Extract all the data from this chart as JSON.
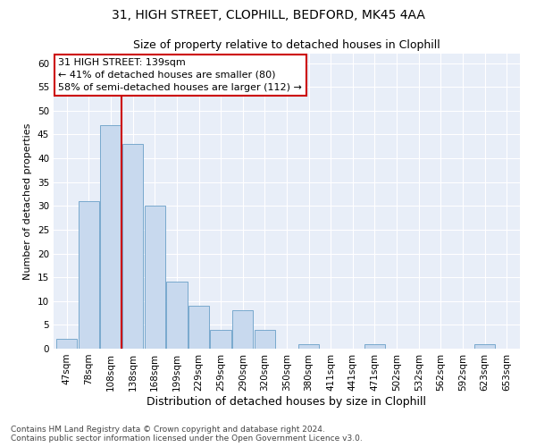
{
  "title1": "31, HIGH STREET, CLOPHILL, BEDFORD, MK45 4AA",
  "title2": "Size of property relative to detached houses in Clophill",
  "xlabel": "Distribution of detached houses by size in Clophill",
  "ylabel": "Number of detached properties",
  "categories": [
    "47sqm",
    "78sqm",
    "108sqm",
    "138sqm",
    "168sqm",
    "199sqm",
    "229sqm",
    "259sqm",
    "290sqm",
    "320sqm",
    "350sqm",
    "380sqm",
    "411sqm",
    "441sqm",
    "471sqm",
    "502sqm",
    "532sqm",
    "562sqm",
    "592sqm",
    "623sqm",
    "653sqm"
  ],
  "values": [
    2,
    31,
    47,
    43,
    30,
    14,
    9,
    4,
    8,
    4,
    0,
    1,
    0,
    0,
    1,
    0,
    0,
    0,
    0,
    1,
    0
  ],
  "bar_color": "#c8d9ee",
  "bar_edge_color": "#6a9fc8",
  "vline_x_index": 3,
  "vline_color": "#cc0000",
  "annotation_line1": "31 HIGH STREET: 139sqm",
  "annotation_line2": "← 41% of detached houses are smaller (80)",
  "annotation_line3": "58% of semi-detached houses are larger (112) →",
  "annotation_box_color": "#ffffff",
  "annotation_box_edge": "#cc0000",
  "ylim": [
    0,
    62
  ],
  "yticks": [
    0,
    5,
    10,
    15,
    20,
    25,
    30,
    35,
    40,
    45,
    50,
    55,
    60
  ],
  "plot_bg_color": "#e8eef8",
  "footer_text": "Contains HM Land Registry data © Crown copyright and database right 2024.\nContains public sector information licensed under the Open Government Licence v3.0.",
  "title1_fontsize": 10,
  "title2_fontsize": 9,
  "xlabel_fontsize": 9,
  "ylabel_fontsize": 8,
  "tick_fontsize": 7.5,
  "annot_fontsize": 8,
  "footer_fontsize": 6.5
}
